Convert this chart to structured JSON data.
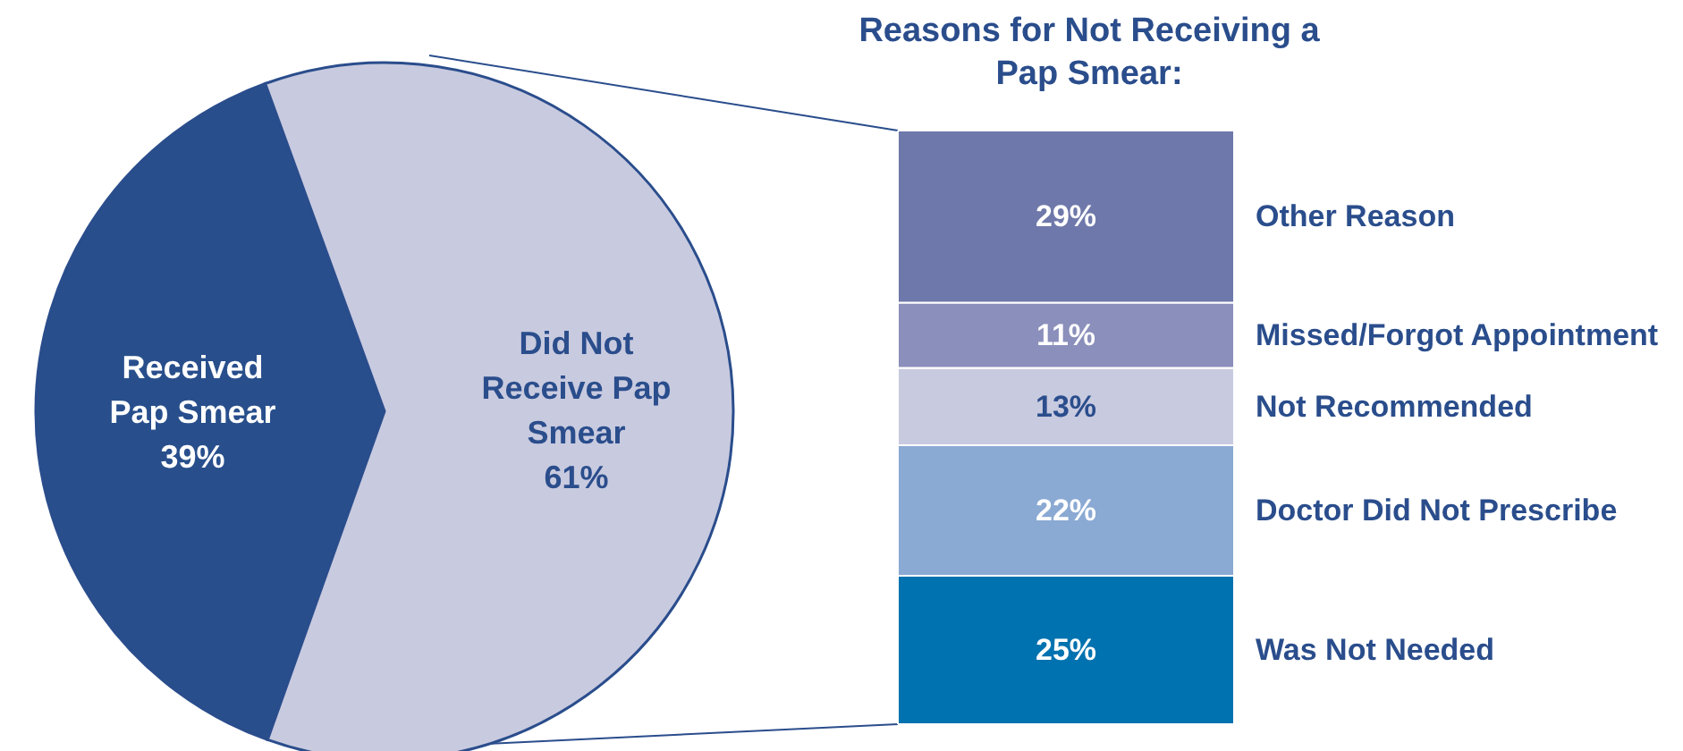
{
  "chart_data": [
    {
      "type": "pie",
      "categories": [
        "Received Pap Smear",
        "Did Not Receive Pap Smear"
      ],
      "values": [
        39,
        61
      ],
      "colors": [
        "#284f8c",
        "#c8cadf"
      ],
      "value_labels": [
        "39%",
        "61%"
      ]
    },
    {
      "type": "bar",
      "title": "Reasons for Not Receiving a Pap Smear:",
      "stacked": true,
      "categories": [
        null
      ],
      "series": [
        {
          "name": "Was Not Needed",
          "color": "#0072b0",
          "values": [
            25
          ],
          "value_labels": [
            "25%"
          ]
        },
        {
          "name": "Doctor Did Not Prescribe",
          "color": "#8aa9d3",
          "values": [
            22
          ],
          "value_labels": [
            "22%"
          ]
        },
        {
          "name": "Not Recommended",
          "color": "#c8cadf",
          "values": [
            13
          ],
          "value_labels": [
            "13%"
          ]
        },
        {
          "name": "Missed/Forgot Appointment",
          "color": "#8a8fbb",
          "values": [
            11
          ],
          "value_labels": [
            "11%"
          ]
        },
        {
          "name": "Other Reason",
          "color": "#6e78aa",
          "values": [
            29
          ],
          "value_labels": [
            "29%"
          ]
        }
      ]
    }
  ]
}
